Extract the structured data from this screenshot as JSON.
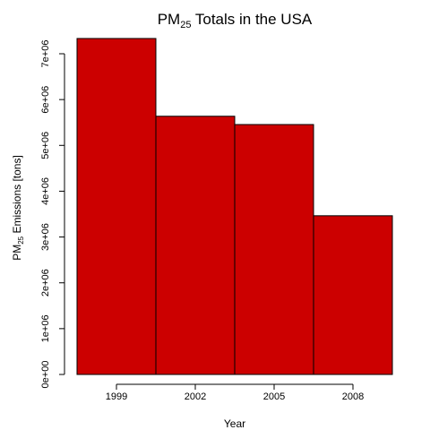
{
  "chart_data": {
    "type": "bar",
    "title": "PM",
    "title_subscript": "25",
    "title_rest": " Totals in the USA",
    "xlabel": "Year",
    "ylabel": "PM",
    "ylabel_subscript": "25",
    "ylabel_rest": " Emissions [tons]",
    "categories": [
      "1999",
      "2002",
      "2005",
      "2008"
    ],
    "values": [
      7332967,
      5635780,
      5454703,
      3464206
    ],
    "ylim": [
      0,
      7400000
    ],
    "yticks": [
      0,
      1000000,
      2000000,
      3000000,
      4000000,
      5000000,
      6000000,
      7000000
    ],
    "ytick_labels": [
      "0e+00",
      "1e+06",
      "2e+06",
      "3e+06",
      "4e+06",
      "5e+06",
      "6e+06",
      "7e+06"
    ],
    "bar_color": "#cc0000",
    "bar_border_color": "#000000",
    "grid": false,
    "legend": "none"
  }
}
